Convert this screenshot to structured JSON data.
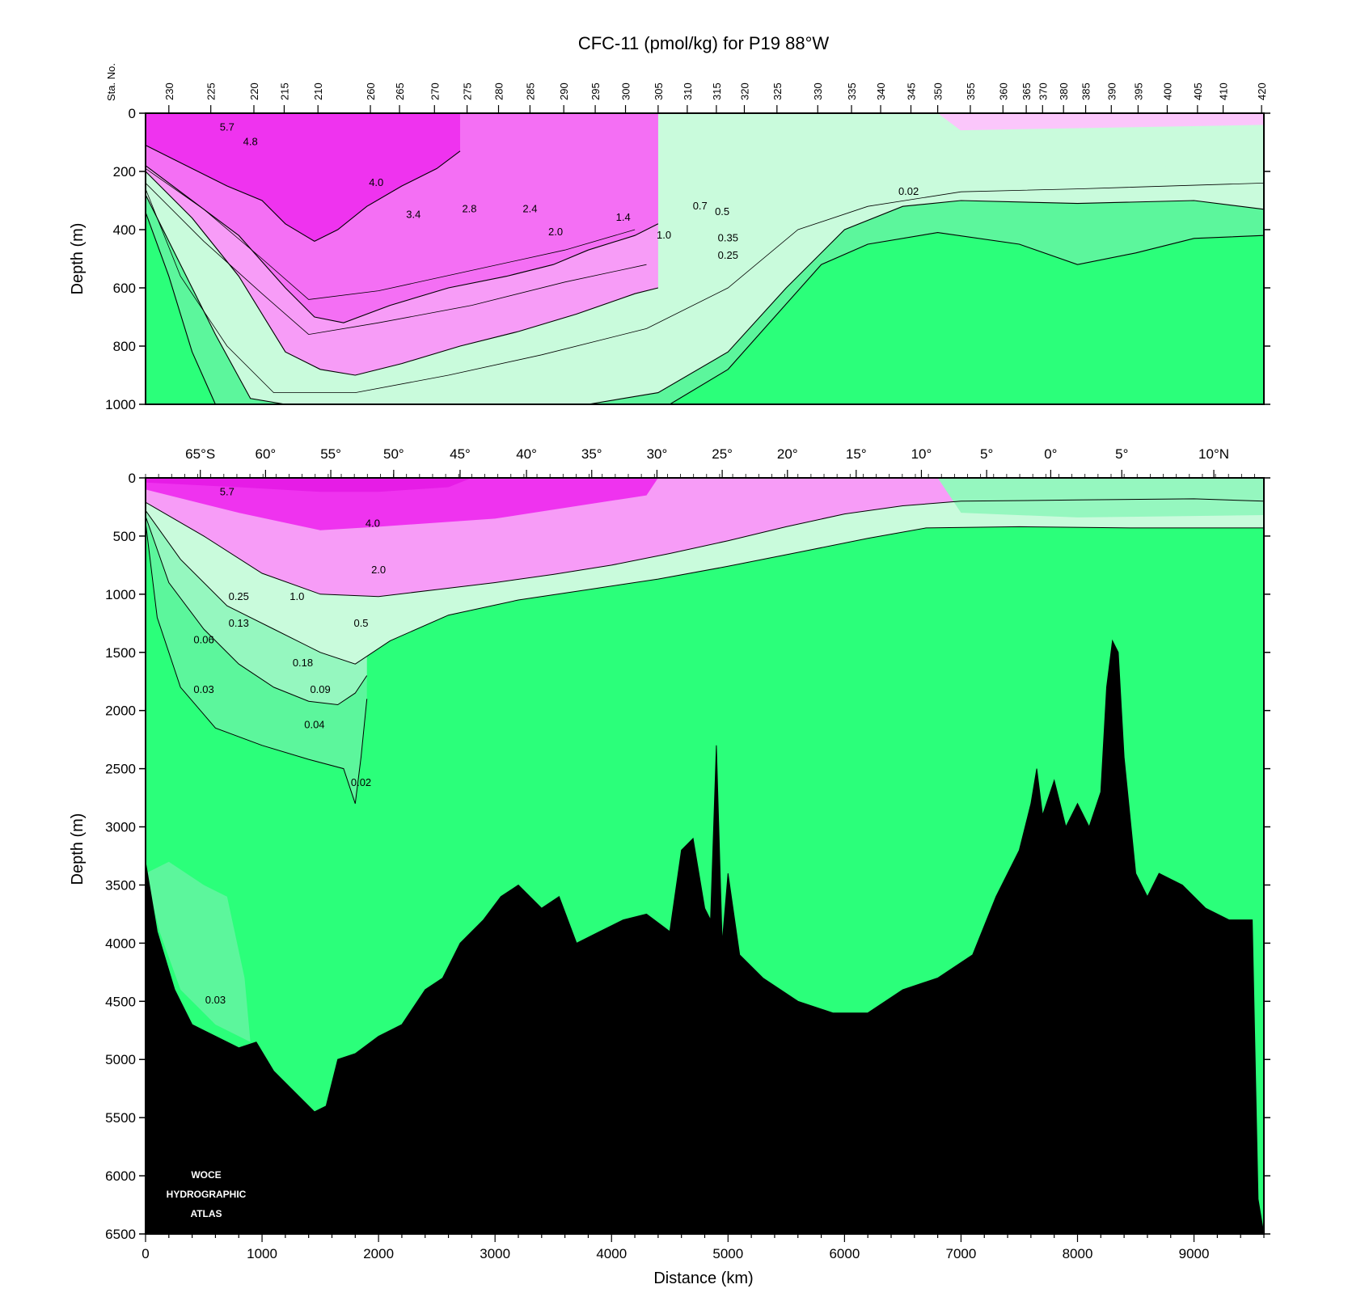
{
  "chart_data": [
    {
      "type": "heatmap",
      "panel": "upper",
      "title": "CFC-11 (pmol/kg) for P19 88°W",
      "ylabel": "Depth (m)",
      "ylim": [
        1000,
        0
      ],
      "xlim": [
        0,
        9600
      ],
      "y_ticks": [
        "0",
        "200",
        "400",
        "600",
        "800",
        "1000"
      ],
      "y_tick_values": [
        0,
        200,
        400,
        600,
        800,
        1000
      ],
      "station_axis_label": "Sta. No.",
      "stations": [
        "230",
        "225",
        "220",
        "215",
        "210",
        "260",
        "265",
        "270",
        "275",
        "280",
        "285",
        "290",
        "295",
        "300",
        "305",
        "310",
        "315",
        "320",
        "325",
        "330",
        "335",
        "340",
        "345",
        "350",
        "355",
        "360",
        "365",
        "370",
        "380",
        "385",
        "390",
        "395",
        "400",
        "405",
        "410",
        "420"
      ],
      "station_km": [
        200,
        560,
        930,
        1190,
        1480,
        1930,
        2180,
        2480,
        2760,
        3030,
        3300,
        3590,
        3860,
        4120,
        4400,
        4650,
        4900,
        5140,
        5420,
        5770,
        6060,
        6310,
        6570,
        6800,
        7080,
        7360,
        7560,
        7700,
        7880,
        8070,
        8290,
        8520,
        8770,
        9030,
        9250,
        9580
      ],
      "colorscale": {
        "levels": [
          0.02,
          0.25,
          0.5,
          1.0,
          2.0,
          3.4,
          4.8
        ],
        "colors": [
          "#2bff7a",
          "#5cf69c",
          "#95f7bf",
          "#c9fbdc",
          "#fbc6fb",
          "#f79cf7",
          "#f46ff4",
          "#ef33ef"
        ]
      },
      "contour_labels": [
        "5.7",
        "4.8",
        "4.0",
        "3.4",
        "2.8",
        "2.4",
        "2.0",
        "1.4",
        "1.0",
        "0.7",
        "0.5",
        "0.35",
        "0.25",
        "0.02"
      ],
      "series": [
        {
          "name": "4.0",
          "x": [
            0,
            300,
            700,
            1000,
            1200,
            1450,
            1650,
            1900,
            2200,
            2500,
            2700
          ],
          "y": [
            110,
            170,
            250,
            300,
            380,
            440,
            400,
            320,
            250,
            190,
            130
          ]
        },
        {
          "name": "2.0",
          "x": [
            0,
            400,
            800,
            1200,
            1450,
            1700,
            2100,
            2600,
            3100,
            3500,
            3800,
            4200,
            4400
          ],
          "y": [
            180,
            300,
            420,
            600,
            700,
            720,
            660,
            600,
            560,
            520,
            470,
            420,
            380
          ]
        },
        {
          "name": "1.0",
          "x": [
            0,
            400,
            800,
            1200,
            1500,
            1800,
            2200,
            2700,
            3200,
            3700,
            4200,
            4400
          ],
          "y": [
            200,
            360,
            560,
            820,
            880,
            900,
            860,
            800,
            750,
            690,
            620,
            600
          ]
        },
        {
          "name": "0.25",
          "x": [
            0,
            300,
            600,
            900,
            1200,
            1700,
            2300,
            3000,
            3800,
            4400,
            5000,
            5500,
            6000,
            6500,
            7000,
            8000,
            9000,
            9600
          ],
          "y": [
            280,
            520,
            760,
            980,
            1000,
            1000,
            1000,
            1000,
            1000,
            960,
            820,
            600,
            400,
            320,
            300,
            310,
            300,
            330
          ]
        },
        {
          "name": "0.02",
          "x": [
            0,
            200,
            400,
            600,
            800,
            1000,
            1500,
            2500,
            3500,
            4500,
            5000,
            5400,
            5800,
            6200,
            6800,
            7500,
            8000,
            8500,
            9000,
            9600
          ],
          "y": [
            340,
            560,
            820,
            1000,
            1000,
            1000,
            1000,
            1000,
            1000,
            1000,
            880,
            700,
            520,
            450,
            410,
            450,
            520,
            480,
            430,
            420
          ]
        }
      ]
    },
    {
      "type": "heatmap",
      "panel": "lower",
      "xlabel": "Distance (km)",
      "ylabel": "Depth (m)",
      "xlim": [
        0,
        9600
      ],
      "ylim": [
        6500,
        0
      ],
      "x_ticks": [
        "0",
        "1000",
        "2000",
        "3000",
        "4000",
        "5000",
        "6000",
        "7000",
        "8000",
        "9000"
      ],
      "x_tick_values": [
        0,
        1000,
        2000,
        3000,
        4000,
        5000,
        6000,
        7000,
        8000,
        9000
      ],
      "y_ticks": [
        "0",
        "500",
        "1000",
        "1500",
        "2000",
        "2500",
        "3000",
        "3500",
        "4000",
        "4500",
        "5000",
        "5500",
        "6000",
        "6500"
      ],
      "y_tick_values": [
        0,
        500,
        1000,
        1500,
        2000,
        2500,
        3000,
        3500,
        4000,
        4500,
        5000,
        5500,
        6000,
        6500
      ],
      "latitude_labels": [
        "65°S",
        "60°",
        "55°",
        "50°",
        "45°",
        "40°",
        "35°",
        "30°",
        "25°",
        "20°",
        "15°",
        "10°",
        "5°",
        "0°",
        "5°",
        "10°N"
      ],
      "latitude_km": [
        470,
        1030,
        1590,
        2130,
        2700,
        3270,
        3830,
        4390,
        4950,
        5510,
        6100,
        6660,
        7220,
        7770,
        8380,
        9170
      ],
      "contour_labels": [
        "5.7",
        "4.0",
        "2.0",
        "1.0",
        "0.5",
        "0.25",
        "0.13",
        "0.06",
        "0.18",
        "0.09",
        "0.03",
        "0.04",
        "0.02",
        "0.03"
      ],
      "series": [
        {
          "name": "1.0",
          "x": [
            0,
            500,
            1000,
            1500,
            2000,
            2500,
            3000,
            3500,
            4000,
            4500,
            5000,
            5500,
            6000,
            6500,
            7000,
            8000,
            9000,
            9600
          ],
          "y": [
            210,
            500,
            820,
            1000,
            1020,
            960,
            900,
            830,
            750,
            650,
            540,
            420,
            310,
            240,
            200,
            190,
            180,
            200
          ]
        },
        {
          "name": "0.25",
          "x": [
            0,
            300,
            700,
            1100,
            1500,
            1800,
            2100,
            2600,
            3200,
            3800,
            4400,
            5000,
            5600,
            6200,
            6700,
            7500,
            8500,
            9600
          ],
          "y": [
            280,
            700,
            1100,
            1300,
            1500,
            1600,
            1400,
            1180,
            1050,
            960,
            870,
            760,
            640,
            520,
            430,
            420,
            430,
            430
          ]
        },
        {
          "name": "0.06",
          "x": [
            0,
            200,
            500,
            800,
            1100,
            1400,
            1650,
            1800,
            1900
          ],
          "y": [
            330,
            900,
            1300,
            1600,
            1800,
            1920,
            1950,
            1850,
            1700
          ]
        },
        {
          "name": "0.02",
          "x": [
            0,
            100,
            300,
            600,
            1000,
            1400,
            1700,
            1800,
            1850,
            1900
          ],
          "y": [
            380,
            1200,
            1800,
            2150,
            2300,
            2420,
            2500,
            2800,
            2400,
            1900
          ]
        }
      ],
      "bathymetry": {
        "x": [
          0,
          100,
          250,
          400,
          600,
          800,
          950,
          1100,
          1250,
          1350,
          1450,
          1550,
          1650,
          1800,
          2000,
          2200,
          2400,
          2550,
          2700,
          2900,
          3050,
          3200,
          3400,
          3550,
          3700,
          3900,
          4100,
          4300,
          4500,
          4600,
          4700,
          4800,
          4850,
          4900,
          4950,
          5000,
          5100,
          5300,
          5600,
          5900,
          6200,
          6500,
          6800,
          7100,
          7300,
          7500,
          7600,
          7650,
          7700,
          7800,
          7900,
          8000,
          8100,
          8200,
          8250,
          8300,
          8350,
          8400,
          8450,
          8500,
          8600,
          8700,
          8900,
          9100,
          9300,
          9500,
          9550,
          9600
        ],
        "y": [
          3300,
          3900,
          4400,
          4700,
          4800,
          4900,
          4850,
          5100,
          5250,
          5350,
          5450,
          5400,
          5000,
          4950,
          4800,
          4700,
          4400,
          4300,
          4000,
          3800,
          3600,
          3500,
          3700,
          3600,
          4000,
          3900,
          3800,
          3750,
          3900,
          3200,
          3100,
          3700,
          3800,
          2300,
          4000,
          3400,
          4100,
          4300,
          4500,
          4600,
          4600,
          4400,
          4300,
          4100,
          3600,
          3200,
          2800,
          2500,
          2900,
          2600,
          3000,
          2800,
          3000,
          2700,
          1800,
          1400,
          1500,
          2400,
          2900,
          3400,
          3600,
          3400,
          3500,
          3700,
          3800,
          3800,
          6200,
          6500
        ]
      }
    }
  ],
  "logo": {
    "line1": "WOCE",
    "line2": "HYDROGRAPHIC",
    "line3": "ATLAS"
  }
}
